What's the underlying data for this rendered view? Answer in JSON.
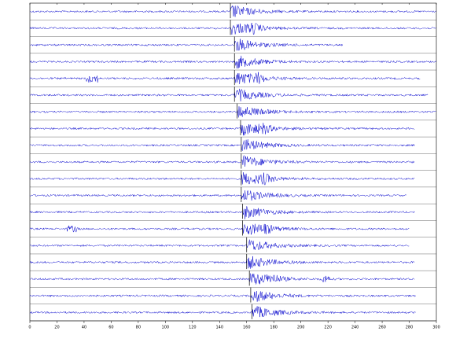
{
  "chart_data": {
    "type": "seismogram",
    "color": "#0000cc",
    "pick_color": "#000000",
    "xlim": [
      0,
      300
    ],
    "xticks": [
      0,
      20,
      40,
      60,
      80,
      100,
      120,
      140,
      160,
      180,
      200,
      220,
      240,
      260,
      280,
      300
    ],
    "traces": [
      {
        "pick": 148,
        "end": 300
      },
      {
        "pick": 148,
        "end": 300
      },
      {
        "pick": 151,
        "end": 231
      },
      {
        "pick": 151,
        "end": 300
      },
      {
        "pick": 151,
        "end": 288
      },
      {
        "pick": 151,
        "end": 294
      },
      {
        "pick": 153,
        "end": 300
      },
      {
        "pick": 155.5,
        "end": 284
      },
      {
        "pick": 156,
        "end": 284
      },
      {
        "pick": 156,
        "end": 284
      },
      {
        "pick": 156,
        "end": 284
      },
      {
        "pick": 156,
        "end": 278
      },
      {
        "pick": 157,
        "end": 284
      },
      {
        "pick": 157,
        "end": 280
      },
      {
        "pick": 160,
        "end": 280
      },
      {
        "pick": 160,
        "end": 284
      },
      {
        "pick": 162,
        "end": 284
      },
      {
        "pick": 163,
        "end": 285
      },
      {
        "pick": 164,
        "end": 285
      }
    ]
  }
}
